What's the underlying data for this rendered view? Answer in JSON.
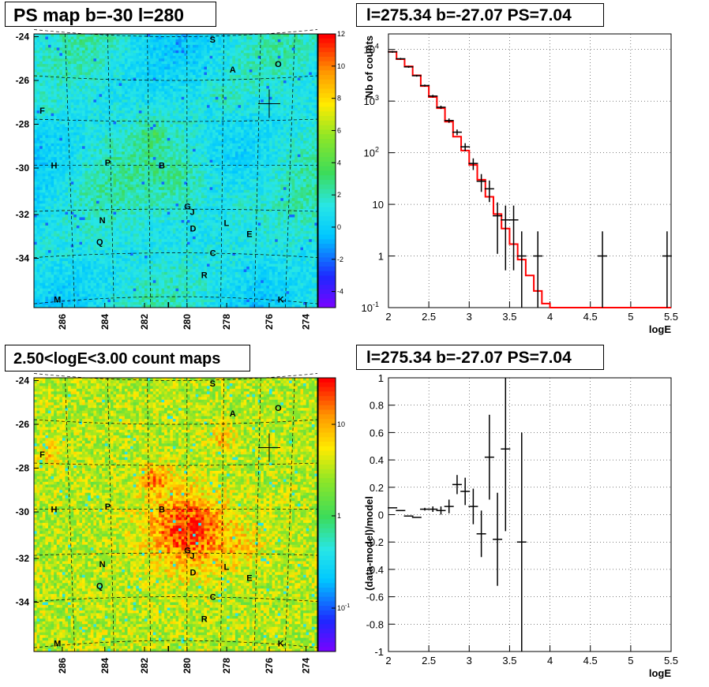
{
  "titles": {
    "map_top": "PS map b=-30 l=280",
    "spectrum": "l=275.34 b=-27.07 PS=7.04",
    "map_bottom": "2.50<logE<3.00 count maps",
    "residual": "l=275.34 b=-27.07 PS=7.04"
  },
  "chart_data": [
    {
      "type": "heatmap",
      "name": "ps_map",
      "y_ticks": [
        "-24",
        "-26",
        "-28",
        "-30",
        "-32",
        "-34"
      ],
      "x_ticks": [
        "286",
        "284",
        "282",
        "280",
        "278",
        "276",
        "274"
      ],
      "colorbar_ticks": [
        "12",
        "10",
        "8",
        "6",
        "4",
        "2",
        "0",
        "-2",
        "-4"
      ],
      "colorbar_range": [
        -5,
        12
      ],
      "source_labels": [
        "S",
        "O",
        "A",
        "F",
        "H",
        "P",
        "B",
        "G",
        "J",
        "N",
        "L",
        "D",
        "E",
        "Q",
        "C",
        "R",
        "M",
        "I",
        "K"
      ],
      "cross_marker": {
        "l": 275.34,
        "b": -27.07
      }
    },
    {
      "type": "line",
      "name": "spectrum",
      "xlabel": "logE",
      "ylabel": "Nb of counts",
      "xlim": [
        2,
        5.5
      ],
      "ylim": [
        0.1,
        20000
      ],
      "log_y": true,
      "x_ticks": [
        "2",
        "2.5",
        "3",
        "3.5",
        "4",
        "4.5",
        "5",
        "5.5"
      ],
      "y_ticks": [
        {
          "base": "10",
          "exp": "-1"
        },
        {
          "base": "1",
          "exp": ""
        },
        {
          "base": "10",
          "exp": ""
        },
        {
          "base": "10",
          "exp": "2"
        },
        {
          "base": "10",
          "exp": "3"
        },
        {
          "base": "10",
          "exp": "4"
        }
      ],
      "data_points": [
        {
          "x": 2.05,
          "y": 9000
        },
        {
          "x": 2.15,
          "y": 6600
        },
        {
          "x": 2.25,
          "y": 4600
        },
        {
          "x": 2.35,
          "y": 3100
        },
        {
          "x": 2.45,
          "y": 2000
        },
        {
          "x": 2.55,
          "y": 1250
        },
        {
          "x": 2.65,
          "y": 760
        },
        {
          "x": 2.75,
          "y": 420
        },
        {
          "x": 2.85,
          "y": 250
        },
        {
          "x": 2.95,
          "y": 130
        },
        {
          "x": 3.05,
          "y": 62
        },
        {
          "x": 3.15,
          "y": 28
        },
        {
          "x": 3.25,
          "y": 20
        },
        {
          "x": 3.35,
          "y": 6
        },
        {
          "x": 3.45,
          "y": 5
        },
        {
          "x": 3.55,
          "y": 5
        },
        {
          "x": 3.65,
          "y": 1
        },
        {
          "x": 3.85,
          "y": 1
        },
        {
          "x": 4.65,
          "y": 1
        },
        {
          "x": 5.45,
          "y": 1
        }
      ],
      "model_step": [
        {
          "x0": 2.0,
          "y": 9000
        },
        {
          "x0": 2.1,
          "y": 6500
        },
        {
          "x0": 2.2,
          "y": 4700
        },
        {
          "x0": 2.3,
          "y": 3150
        },
        {
          "x0": 2.4,
          "y": 1950
        },
        {
          "x0": 2.5,
          "y": 1200
        },
        {
          "x0": 2.6,
          "y": 730
        },
        {
          "x0": 2.7,
          "y": 400
        },
        {
          "x0": 2.8,
          "y": 205
        },
        {
          "x0": 2.9,
          "y": 110
        },
        {
          "x0": 3.0,
          "y": 58
        },
        {
          "x0": 3.1,
          "y": 30
        },
        {
          "x0": 3.2,
          "y": 14
        },
        {
          "x0": 3.3,
          "y": 6.5
        },
        {
          "x0": 3.4,
          "y": 3.4
        },
        {
          "x0": 3.5,
          "y": 1.7
        },
        {
          "x0": 3.6,
          "y": 0.85
        },
        {
          "x0": 3.7,
          "y": 0.42
        },
        {
          "x0": 3.8,
          "y": 0.21
        },
        {
          "x0": 3.9,
          "y": 0.12
        },
        {
          "x0": 4.0,
          "y": 0.1
        }
      ],
      "colors": {
        "model": "#ff0000",
        "data": "#000000"
      }
    },
    {
      "type": "heatmap",
      "name": "count_map",
      "y_ticks": [
        "-24",
        "-26",
        "-28",
        "-30",
        "-32",
        "-34"
      ],
      "x_ticks": [
        "286",
        "284",
        "282",
        "280",
        "278",
        "276",
        "274"
      ],
      "colorbar_ticks": [
        "10",
        "1",
        "10-1"
      ],
      "log_scale": true,
      "source_labels": [
        "S",
        "O",
        "A",
        "F",
        "H",
        "P",
        "B",
        "G",
        "J",
        "N",
        "L",
        "D",
        "E",
        "Q",
        "C",
        "R",
        "M",
        "I",
        "K"
      ],
      "cross_marker": {
        "l": 275.34,
        "b": -27.07
      }
    },
    {
      "type": "scatter",
      "name": "residual",
      "xlabel": "logE",
      "ylabel": "(data-model)/model",
      "xlim": [
        2,
        5.5
      ],
      "ylim": [
        -1,
        1
      ],
      "x_ticks": [
        "2",
        "2.5",
        "3",
        "3.5",
        "4",
        "4.5",
        "5",
        "5.5"
      ],
      "y_ticks": [
        "1",
        "0.8",
        "0.6",
        "0.4",
        "0.2",
        "0",
        "-0.2",
        "-0.4",
        "-0.6",
        "-0.8",
        "-1"
      ],
      "points": [
        {
          "x": 2.05,
          "y": 0.05,
          "err": 0.0
        },
        {
          "x": 2.15,
          "y": 0.03,
          "err": 0.0
        },
        {
          "x": 2.25,
          "y": -0.01,
          "err": 0.0
        },
        {
          "x": 2.35,
          "y": -0.02,
          "err": 0.0
        },
        {
          "x": 2.45,
          "y": 0.04,
          "err": 0.01
        },
        {
          "x": 2.55,
          "y": 0.04,
          "err": 0.02
        },
        {
          "x": 2.65,
          "y": 0.03,
          "err": 0.03
        },
        {
          "x": 2.75,
          "y": 0.06,
          "err": 0.05
        },
        {
          "x": 2.85,
          "y": 0.22,
          "err": 0.07
        },
        {
          "x": 2.95,
          "y": 0.17,
          "err": 0.1
        },
        {
          "x": 3.05,
          "y": 0.06,
          "err": 0.13
        },
        {
          "x": 3.15,
          "y": -0.14,
          "err": 0.17
        },
        {
          "x": 3.25,
          "y": 0.42,
          "err": 0.31
        },
        {
          "x": 3.35,
          "y": -0.18,
          "err": 0.34
        },
        {
          "x": 3.45,
          "y": 0.48,
          "err": 0.6
        },
        {
          "x": 3.65,
          "y": -0.2,
          "err": 0.8
        }
      ]
    }
  ]
}
